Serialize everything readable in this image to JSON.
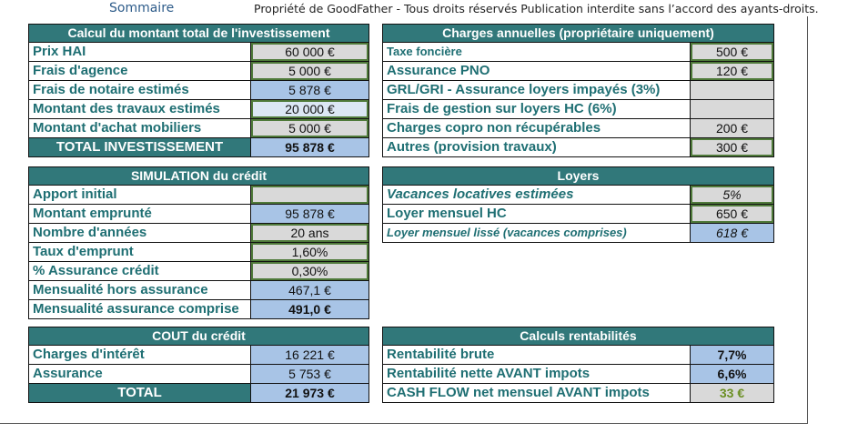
{
  "top": {
    "sommaire": "Sommaire",
    "copyright": "Propriété de GoodFather - Tous droits réservés Publication interdite sans l’accord des ayants-droits."
  },
  "investissement": {
    "title": "Calcul du montant total de l'investissement",
    "rows": [
      {
        "label": "Prix HAI",
        "value": "60 000 €"
      },
      {
        "label": "Frais d'agence",
        "value": "5 000 €"
      },
      {
        "label": "Frais de notaire estimés",
        "value": "5 878 €"
      },
      {
        "label": "Montant des travaux estimés",
        "value": "20 000 €"
      },
      {
        "label": "Montant d'achat mobiliers",
        "value": "5 000 €"
      }
    ],
    "total_label": "TOTAL INVESTISSEMENT",
    "total_value": "95 878 €"
  },
  "charges": {
    "title": "Charges annuelles (propriétaire uniquement)",
    "rows": [
      {
        "label": "Taxe foncière",
        "value": "500 €"
      },
      {
        "label": "Assurance PNO",
        "value": "120 €"
      },
      {
        "label": "GRL/GRI - Assurance loyers impayés (3%)",
        "value": ""
      },
      {
        "label": "Frais de gestion sur loyers HC (6%)",
        "value": ""
      },
      {
        "label": "Charges copro non récupérables",
        "value": "200 €"
      },
      {
        "label": "Autres (provision travaux)",
        "value": "300 €"
      }
    ]
  },
  "credit": {
    "title": "SIMULATION du crédit",
    "rows": [
      {
        "label": "Apport initial",
        "value": ""
      },
      {
        "label": "Montant emprunté",
        "value": "95 878 €"
      },
      {
        "label": "Nombre d'années",
        "value": "20 ans"
      },
      {
        "label": "Taux d'emprunt",
        "value": "1,60%"
      },
      {
        "label": "% Assurance crédit",
        "value": "0,30%"
      },
      {
        "label": "Mensualité hors assurance",
        "value": "467,1 €"
      },
      {
        "label": "Mensualité assurance comprise",
        "value": "491,0 €"
      }
    ]
  },
  "loyers": {
    "title": "Loyers",
    "rows": [
      {
        "label": "Vacances locatives estimées",
        "value": "5%"
      },
      {
        "label": "Loyer mensuel HC",
        "value": "650 €"
      },
      {
        "label": "Loyer mensuel lissé (vacances comprises)",
        "value": "618 €"
      }
    ]
  },
  "cout": {
    "title": "COUT du crédit",
    "rows": [
      {
        "label": "Charges d'intérêt",
        "value": "16 221 €"
      },
      {
        "label": "Assurance",
        "value": "5 753 €"
      }
    ],
    "total_label": "TOTAL",
    "total_value": "21 973 €"
  },
  "rentabilite": {
    "title": "Calculs rentabilités",
    "rows": [
      {
        "label": "Rentabilité brute",
        "value": "7,7%"
      },
      {
        "label": "Rentabilité nette AVANT impots",
        "value": "6,6%"
      },
      {
        "label": "CASH FLOW net mensuel AVANT impots",
        "value": "33 €"
      }
    ]
  }
}
